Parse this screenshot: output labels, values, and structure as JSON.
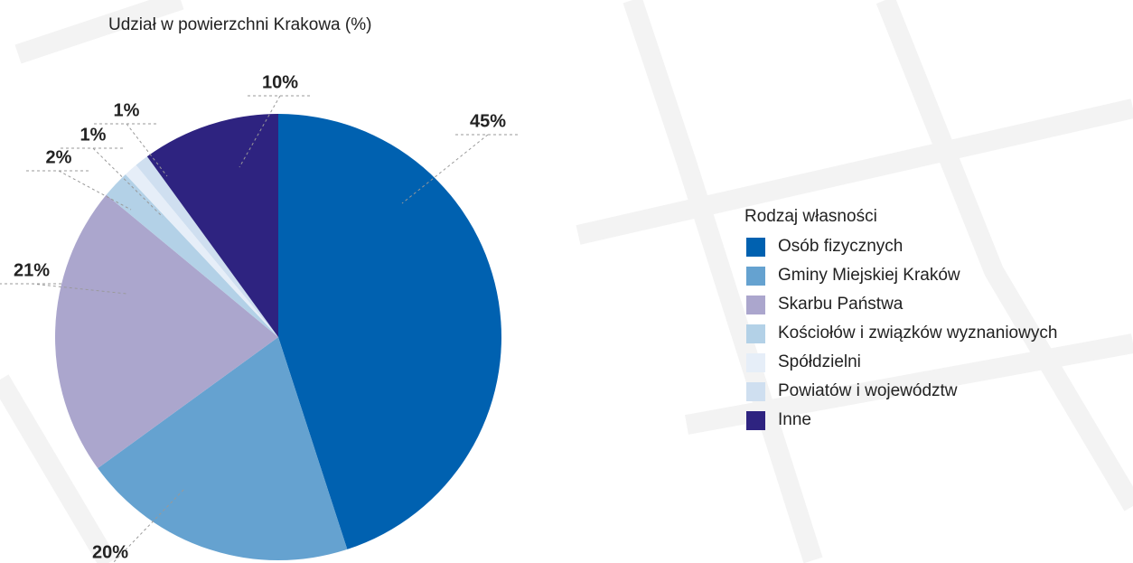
{
  "chart_data": {
    "type": "pie",
    "title": "Udział w powierzchni Krakowa (%)",
    "legend_title": "Rodzaj własności",
    "legend": "right",
    "categories": [
      "Osób fizycznych",
      "Gminy Miejskiej Kraków",
      "Skarbu Państwa",
      "Kościołów i związków wyznaniowych",
      "Spółdzielni",
      "Powiatów i województw",
      "Inne"
    ],
    "values": [
      45,
      20,
      21,
      2,
      1,
      1,
      10
    ],
    "value_labels": [
      "45%",
      "20%",
      "21%",
      "2%",
      "1%",
      "1%",
      "10%"
    ],
    "colors": [
      "#0061b0",
      "#65a2d0",
      "#aba6cd",
      "#b3d1e7",
      "#e6eef8",
      "#cfdff0",
      "#2e2380"
    ]
  }
}
